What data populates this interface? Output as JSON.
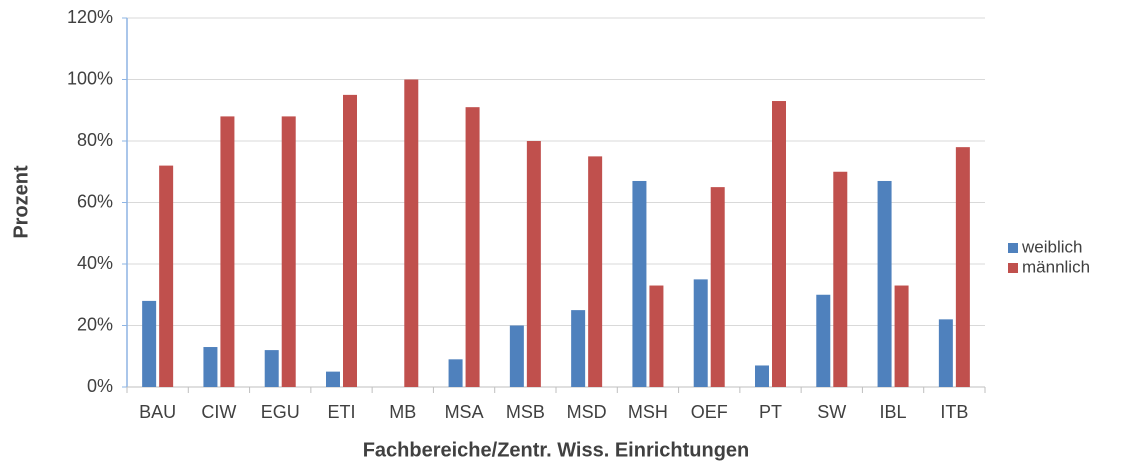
{
  "chart_data": {
    "type": "bar",
    "y_label": "Prozent",
    "x_label": "Fachbereiche/Zentr. Wiss. Einrichtungen",
    "categories": [
      "BAU",
      "CIW",
      "EGU",
      "ETI",
      "MB",
      "MSA",
      "MSB",
      "MSD",
      "MSH",
      "OEF",
      "PT",
      "SW",
      "IBL",
      "ITB"
    ],
    "series": [
      {
        "name": "weiblich",
        "color": "#4f81bd",
        "values": [
          28,
          13,
          12,
          5,
          0,
          9,
          20,
          25,
          67,
          35,
          7,
          30,
          67,
          22
        ]
      },
      {
        "name": "männlich",
        "color": "#c0504d",
        "values": [
          72,
          88,
          88,
          95,
          100,
          91,
          80,
          75,
          33,
          65,
          93,
          70,
          33,
          78
        ]
      }
    ],
    "ylim": [
      0,
      120
    ],
    "yticks": [
      {
        "value": 0,
        "label": "0%"
      },
      {
        "value": 20,
        "label": "20%"
      },
      {
        "value": 40,
        "label": "40%"
      },
      {
        "value": 60,
        "label": "60%"
      },
      {
        "value": 80,
        "label": "80%"
      },
      {
        "value": 100,
        "label": "100%"
      },
      {
        "value": 120,
        "label": "120%"
      }
    ],
    "grid": true,
    "legend": "right"
  }
}
